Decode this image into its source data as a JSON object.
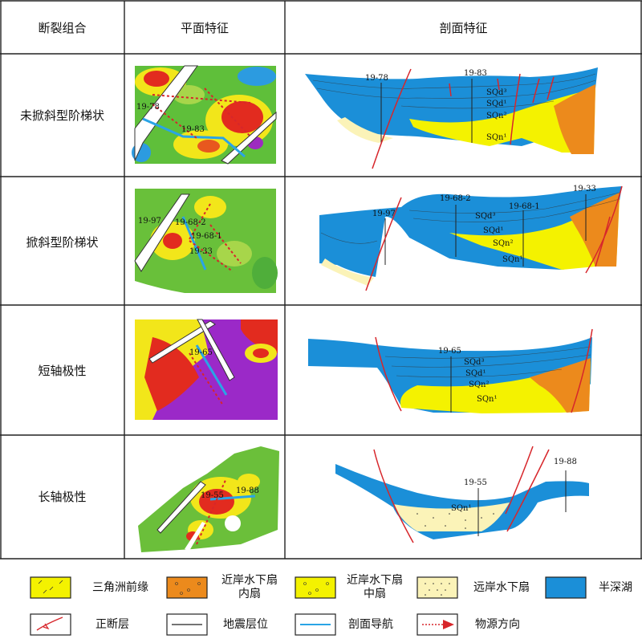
{
  "header": {
    "col1": "断裂组合",
    "col2": "平面特征",
    "col3": "剖面特征"
  },
  "rows": [
    {
      "label": "未掀斜型阶梯状",
      "plan_labels": [
        "19-78",
        "19-83"
      ],
      "section_labels": [
        "19-78",
        "19-83",
        "SQd³",
        "SQd¹",
        "SQn²",
        "SQn¹"
      ]
    },
    {
      "label": "掀斜型阶梯状",
      "plan_labels": [
        "19-97",
        "19-68-2",
        "19-68-1",
        "19-33"
      ],
      "section_labels": [
        "19-97",
        "19-68-2",
        "19-68-1",
        "19-33",
        "SQd³",
        "SQd¹",
        "SQn²",
        "SQn¹"
      ]
    },
    {
      "label": "短轴极性",
      "plan_labels": [
        "19-65"
      ],
      "section_labels": [
        "19-65",
        "SQd³",
        "SQd¹",
        "SQn²",
        "SQn¹"
      ]
    },
    {
      "label": "长轴极性",
      "plan_labels": [
        "19-55",
        "19-88"
      ],
      "section_labels": [
        "19-55",
        "19-88",
        "SQn¹"
      ]
    }
  ],
  "legend": {
    "delta_front": "三角洲前缘",
    "inner_fan": "近岸水下扇\n内扇",
    "middle_fan": "近岸水下扇\n中扇",
    "distal_fan": "远岸水下扇",
    "semi_deep_lake": "半深湖",
    "normal_fault": "正断层",
    "seismic_horizon": "地震层位",
    "profile_nav": "剖面导航",
    "source_direction": "物源方向"
  },
  "colors": {
    "lake_blue": "#1b8fd8",
    "delta_yellow": "#f4f200",
    "inner_fan_orange": "#ec8a1c",
    "distal_fan_cream": "#fbf3b8",
    "fault_red": "#d7262b",
    "profile_blue": "#2aa4e6"
  }
}
